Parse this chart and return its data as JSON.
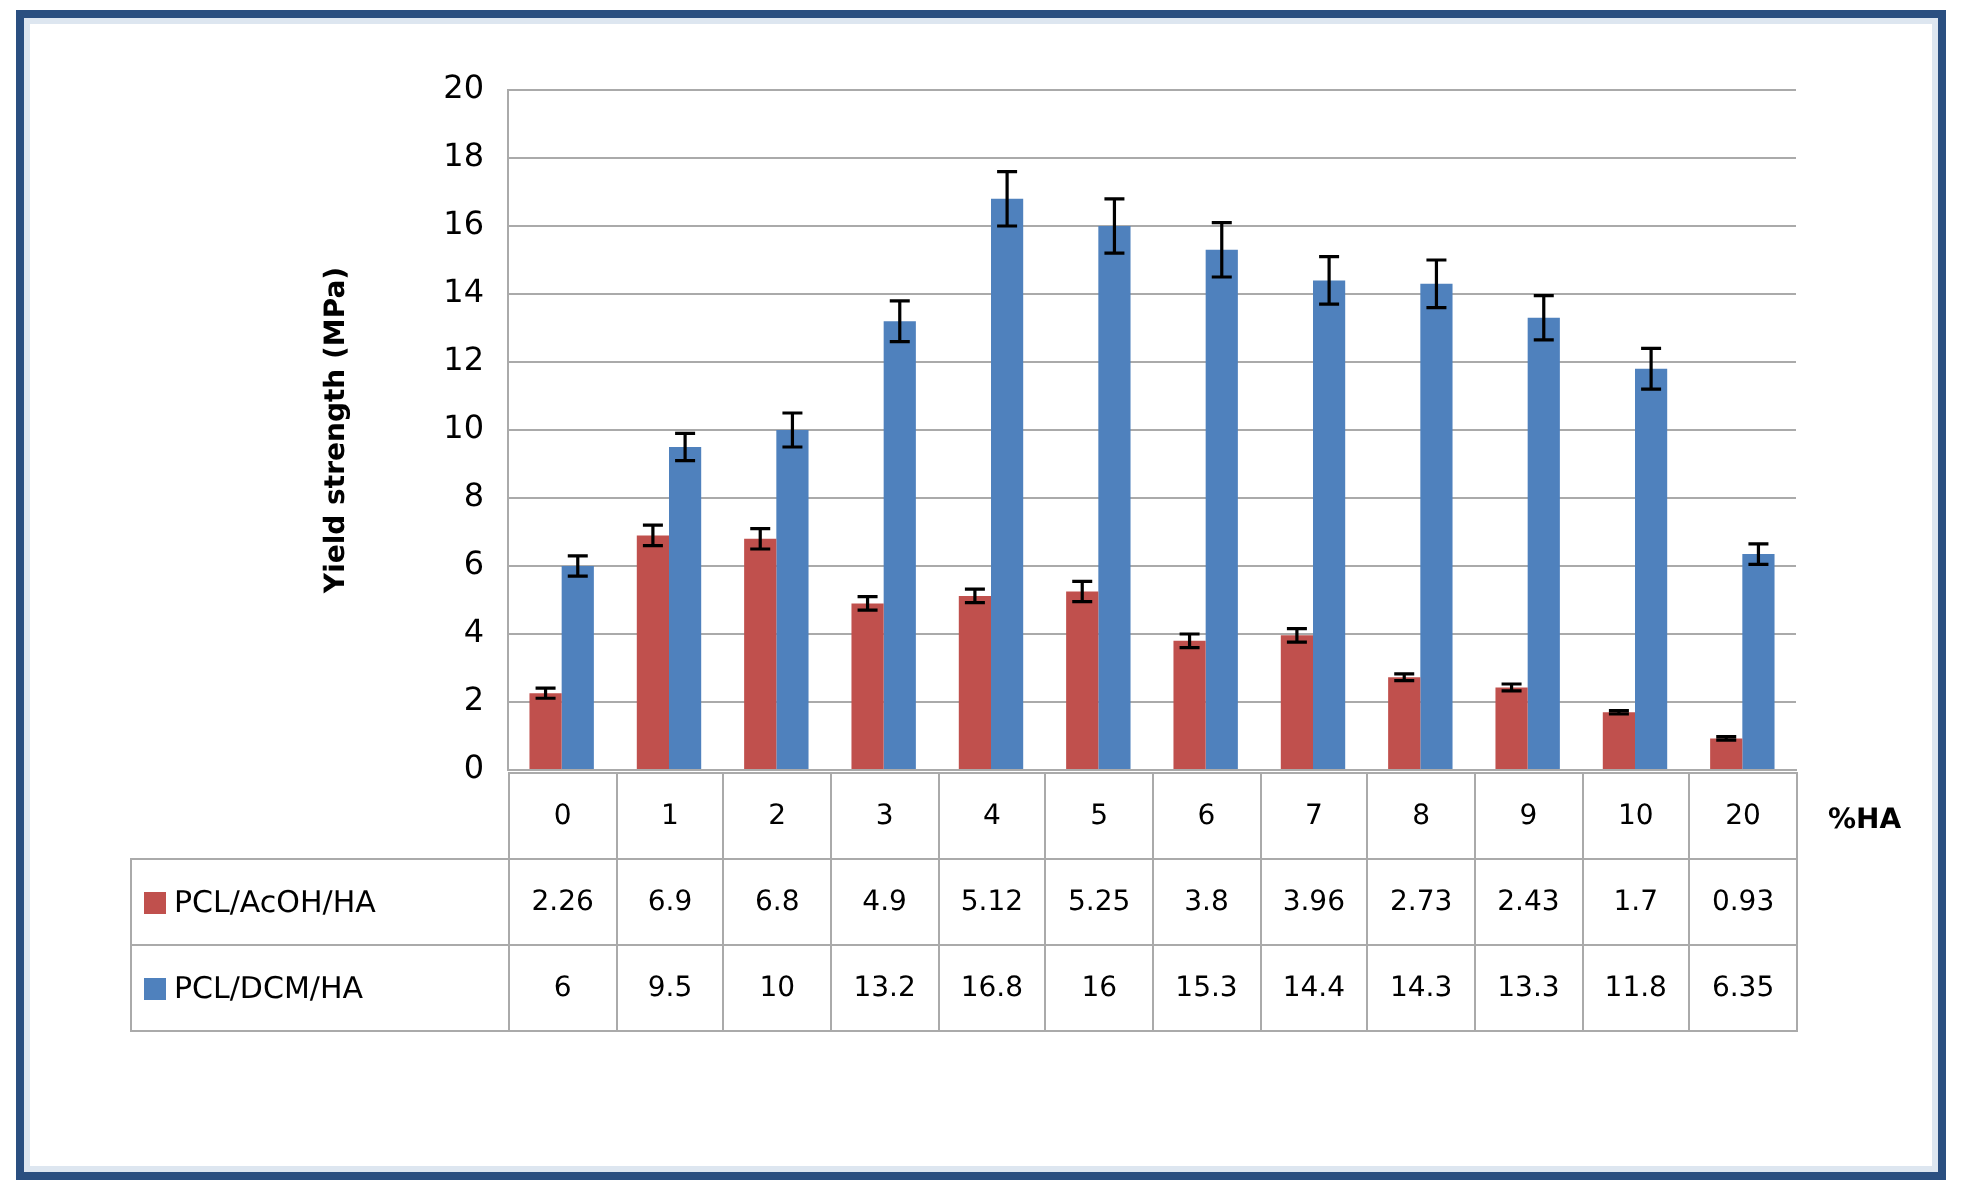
{
  "chart_data": {
    "type": "bar",
    "ylabel": "Yield strength (MPa)",
    "xlabel": "%HA",
    "categories": [
      "0",
      "1",
      "2",
      "3",
      "4",
      "5",
      "6",
      "7",
      "8",
      "9",
      "10",
      "20"
    ],
    "series": [
      {
        "name": "PCL/AcOH/HA",
        "color": "#c0504d",
        "values": [
          2.26,
          6.9,
          6.8,
          4.9,
          5.12,
          5.25,
          3.8,
          3.96,
          2.73,
          2.43,
          1.7,
          0.93
        ],
        "errors": [
          0.15,
          0.3,
          0.3,
          0.2,
          0.2,
          0.3,
          0.2,
          0.2,
          0.1,
          0.1,
          0.05,
          0.05
        ]
      },
      {
        "name": "PCL/DCM/HA",
        "color": "#4f81bd",
        "values": [
          6,
          9.5,
          10,
          13.2,
          16.8,
          16,
          15.3,
          14.4,
          14.3,
          13.3,
          11.8,
          6.35
        ],
        "errors": [
          0.3,
          0.4,
          0.5,
          0.6,
          0.8,
          0.8,
          0.8,
          0.7,
          0.7,
          0.65,
          0.6,
          0.3
        ]
      }
    ],
    "ylim": [
      0,
      20
    ],
    "yticks": [
      0,
      2,
      4,
      6,
      8,
      10,
      12,
      14,
      16,
      18,
      20
    ],
    "grid": "y",
    "legend": "bottom",
    "data_labels": true
  }
}
